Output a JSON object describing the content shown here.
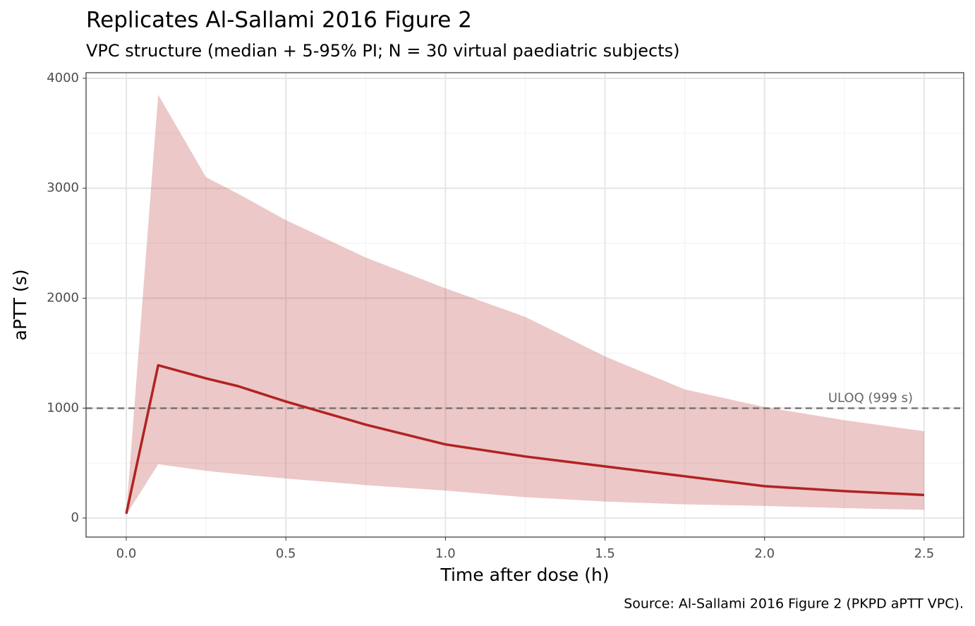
{
  "chart_data": {
    "type": "ribbon-line",
    "title": "Replicates Al-Sallami 2016 Figure 2",
    "subtitle": "VPC structure (median + 5-95% PI; N = 30 virtual paediatric subjects)",
    "x_label": "Time after dose (h)",
    "y_label": "aPTT (s)",
    "caption": "Source: Al-Sallami 2016 Figure 2 (PKPD aPTT VPC).",
    "x": [
      0,
      0.1,
      0.25,
      0.35,
      0.5,
      0.75,
      1.0,
      1.25,
      1.5,
      1.75,
      2.0,
      2.25,
      2.5
    ],
    "median": {
      "color": "#b22222",
      "values": [
        40,
        1390,
        1270,
        1200,
        1060,
        850,
        670,
        560,
        470,
        380,
        290,
        245,
        210
      ]
    },
    "upper": [
      50,
      3850,
      3100,
      2950,
      2710,
      2370,
      2090,
      1830,
      1470,
      1170,
      1010,
      890,
      790
    ],
    "lower": [
      30,
      490,
      430,
      400,
      360,
      300,
      250,
      190,
      150,
      125,
      110,
      90,
      75
    ],
    "band_color": "#b22222",
    "band_opacity": 0.25,
    "hline": {
      "value": 999,
      "label": "ULOQ (999 s)",
      "color": "#666666"
    },
    "xlim": [
      -0.126,
      2.624
    ],
    "ylim": [
      -173,
      4051
    ],
    "xticks": [
      {
        "value": 0,
        "label": "0.0"
      },
      0.5,
      {
        "value": 1,
        "label": "1.0"
      },
      1.5,
      {
        "value": 2,
        "label": "2.0"
      },
      2.5
    ],
    "yticks": [
      0,
      1000,
      2000,
      3000,
      4000
    ],
    "xminor": [
      0.25,
      0.75,
      1.25,
      1.75,
      2.25
    ],
    "yminor": [
      500,
      1500,
      2500,
      3500
    ],
    "grid": true
  }
}
